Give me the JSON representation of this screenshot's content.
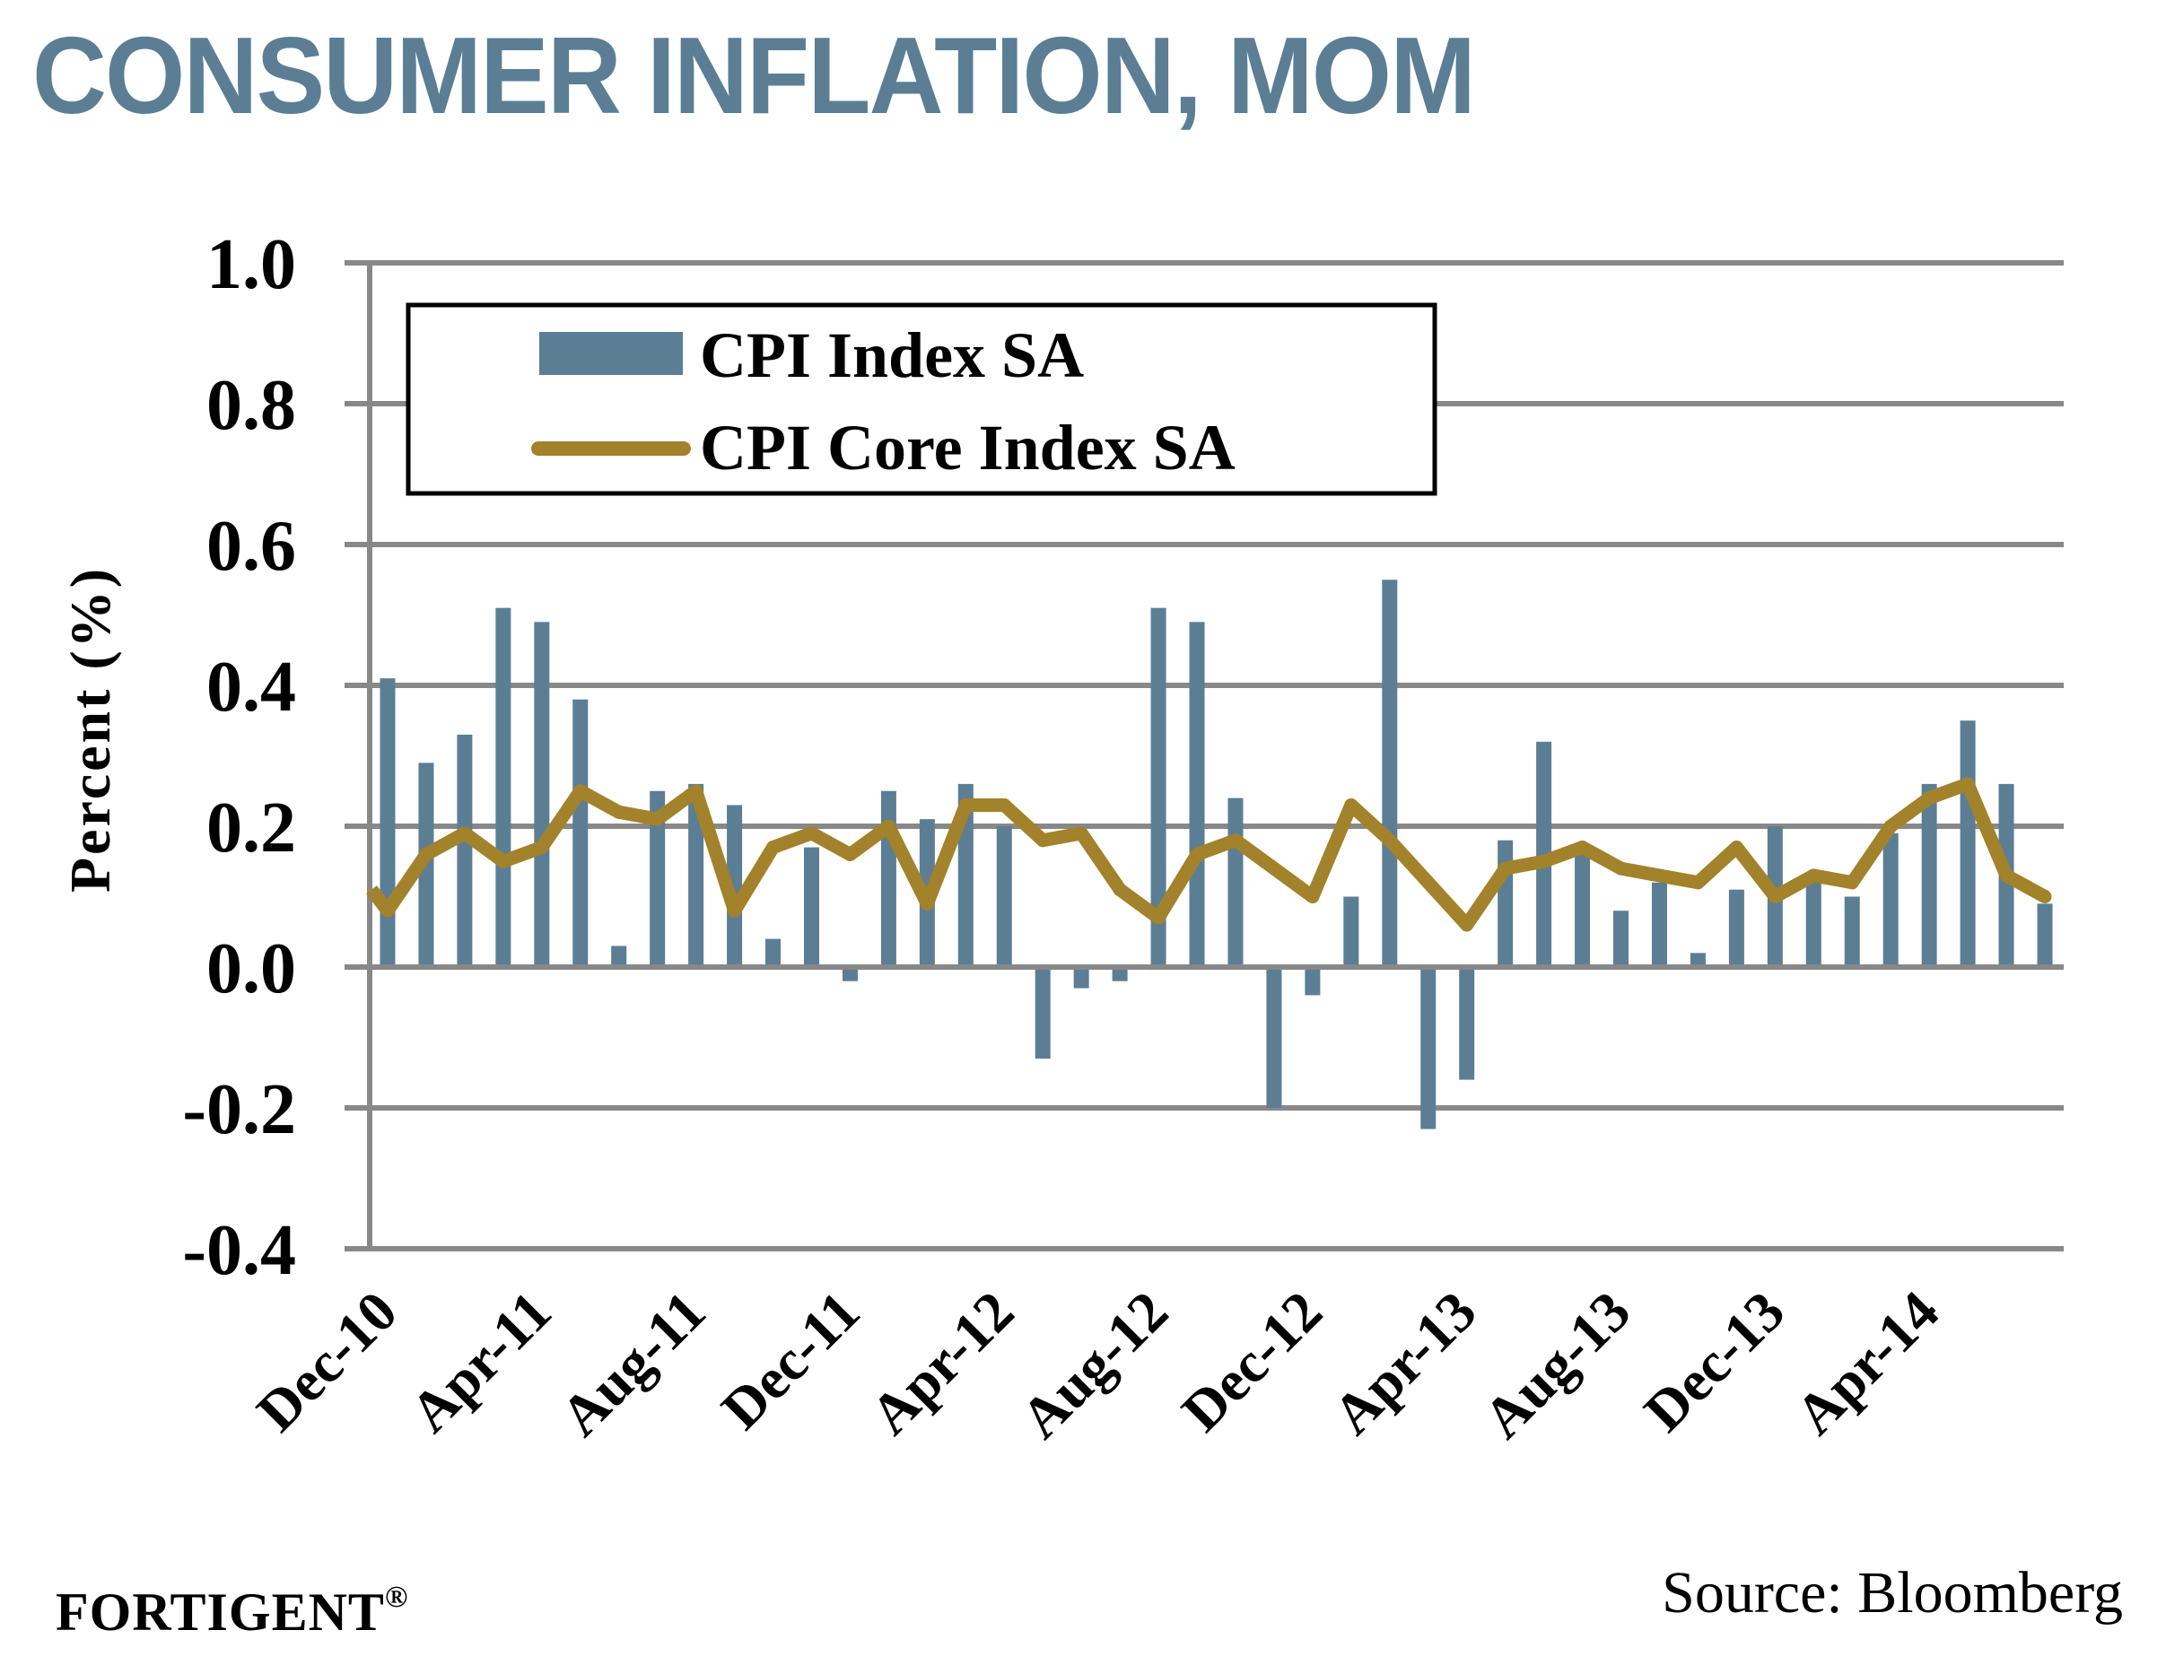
{
  "header": {
    "title": "CONSUMER INFLATION, MOM"
  },
  "footer": {
    "brand": "FORTIGENT",
    "brand_mark": "®",
    "source": "Source: Bloomberg"
  },
  "colors": {
    "bar": "#5B7E95",
    "line": "#A2822A",
    "grid": "#888888",
    "title": "#5B7E95"
  },
  "chart_data": {
    "type": "bar+line",
    "title": "CONSUMER INFLATION, MOM",
    "xlabel": "",
    "ylabel": "Percent (%)",
    "ylim": [
      -0.4,
      1.0
    ],
    "yticks": [
      1.0,
      0.8,
      0.6,
      0.4,
      0.2,
      0.0,
      -0.2,
      -0.4
    ],
    "ytick_labels": [
      "1.0",
      "0.8",
      "0.6",
      "0.4",
      "0.2",
      "0.0",
      "-0.2",
      "-0.4"
    ],
    "grid": true,
    "legend_position": "top-left",
    "x": [
      "Dec-10",
      "Jan-11",
      "Feb-11",
      "Mar-11",
      "Apr-11",
      "May-11",
      "Jun-11",
      "Jul-11",
      "Aug-11",
      "Sep-11",
      "Oct-11",
      "Nov-11",
      "Dec-11",
      "Jan-12",
      "Feb-12",
      "Mar-12",
      "Apr-12",
      "May-12",
      "Jun-12",
      "Jul-12",
      "Aug-12",
      "Sep-12",
      "Oct-12",
      "Nov-12",
      "Dec-12",
      "Jan-13",
      "Feb-13",
      "Mar-13",
      "Apr-13",
      "May-13",
      "Jun-13",
      "Jul-13",
      "Aug-13",
      "Sep-13",
      "Oct-13",
      "Nov-13",
      "Dec-13",
      "Jan-14",
      "Feb-14",
      "Mar-14",
      "Apr-14",
      "May-14",
      "Jun-14",
      "Jul-14"
    ],
    "x_tick_labels": [
      {
        "index": 0,
        "label": "Dec-10"
      },
      {
        "index": 4,
        "label": "Apr-11"
      },
      {
        "index": 8,
        "label": "Aug-11"
      },
      {
        "index": 12,
        "label": "Dec-11"
      },
      {
        "index": 16,
        "label": "Apr-12"
      },
      {
        "index": 20,
        "label": "Aug-12"
      },
      {
        "index": 24,
        "label": "Dec-12"
      },
      {
        "index": 28,
        "label": "Apr-13"
      },
      {
        "index": 32,
        "label": "Aug-13"
      },
      {
        "index": 36,
        "label": "Dec-13"
      },
      {
        "index": 40,
        "label": "Apr-14"
      }
    ],
    "series": [
      {
        "name": "CPI Index SA",
        "type": "bar",
        "values": [
          0.41,
          0.29,
          0.33,
          0.51,
          0.49,
          0.38,
          0.03,
          0.25,
          0.26,
          0.23,
          0.04,
          0.17,
          -0.02,
          0.25,
          0.21,
          0.26,
          0.2,
          -0.13,
          -0.03,
          -0.02,
          0.51,
          0.49,
          0.24,
          -0.2,
          -0.04,
          0.1,
          0.55,
          -0.23,
          -0.16,
          0.18,
          0.32,
          0.16,
          0.08,
          0.12,
          0.02,
          0.11,
          0.2,
          0.13,
          0.1,
          0.19,
          0.26,
          0.35,
          0.26,
          0.09
        ]
      },
      {
        "name": "CPI Core Index SA",
        "type": "line",
        "start_value_at_axis": 0.11,
        "values": [
          0.08,
          0.16,
          0.19,
          0.15,
          0.17,
          0.25,
          0.22,
          0.21,
          0.25,
          0.08,
          0.17,
          0.19,
          0.16,
          0.2,
          0.09,
          0.23,
          0.23,
          0.18,
          0.19,
          0.11,
          0.07,
          0.16,
          0.18,
          0.14,
          0.1,
          0.23,
          0.18,
          0.12,
          0.06,
          0.14,
          0.15,
          0.17,
          0.14,
          0.13,
          0.12,
          0.17,
          0.1,
          0.13,
          0.12,
          0.2,
          0.24,
          0.26,
          0.13,
          0.1
        ]
      }
    ]
  }
}
